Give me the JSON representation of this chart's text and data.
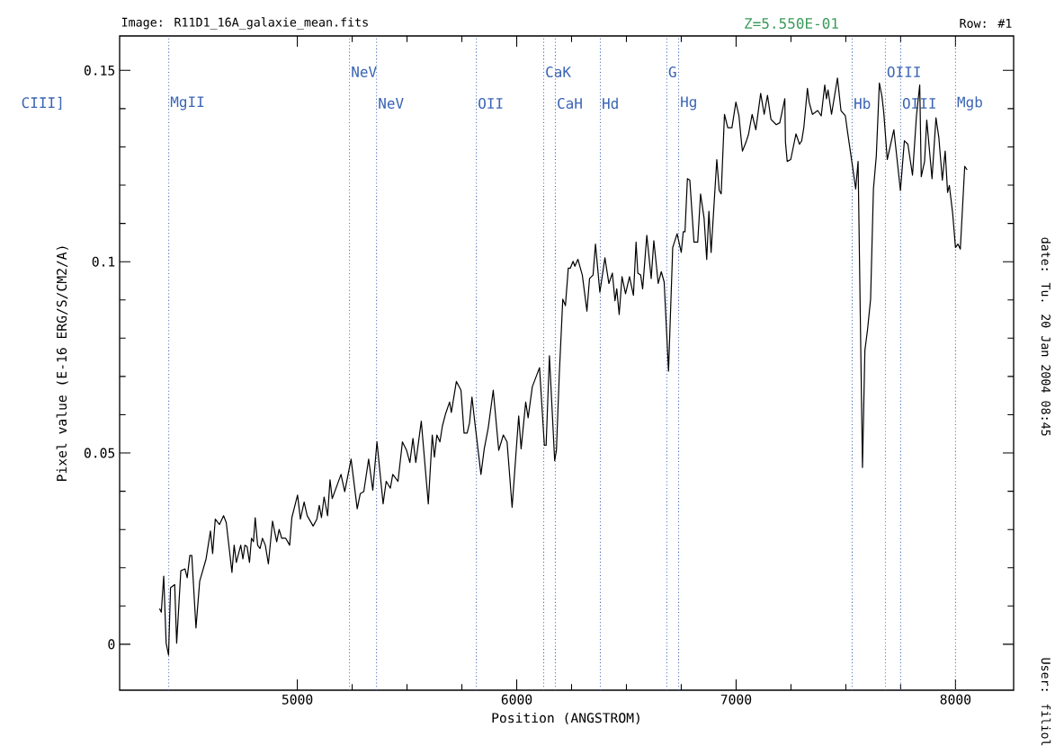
{
  "chart_data": {
    "type": "line",
    "xlabel": "Position (ANGSTROM)",
    "ylabel": "Pixel value (E-16 ERG/S/CM2/A)",
    "annotations": [
      "Image: R11D1_16A_galaxie_mean.fits",
      "Row: #1",
      "CIII]",
      "Z=5.550E-01",
      "date: Tu. 20 Jan 2004 08:45",
      "User: filiol"
    ],
    "xlim": [
      4190,
      8265
    ],
    "ylim": [
      -0.012,
      0.159
    ],
    "xticks": [
      5000,
      6000,
      7000,
      8000
    ],
    "yticks": [
      0,
      0.05,
      0.1,
      0.15
    ],
    "grid": false,
    "marker": "none",
    "line_style": "solid",
    "ref_lines": [
      {
        "axis": "x",
        "value": 4414,
        "label": "MgII",
        "color": "#3a64b4",
        "line_style": "dotted"
      },
      {
        "axis": "x",
        "value": 5238,
        "label": "NeV",
        "color": "#3a64b4",
        "line_style": "dotted"
      },
      {
        "axis": "x",
        "value": 5361,
        "label": "NeV",
        "color": "#3a64b4",
        "line_style": "dotted"
      },
      {
        "axis": "x",
        "value": 5816,
        "label": "OII",
        "color": "#3a64b4",
        "line_style": "dotted"
      },
      {
        "axis": "x",
        "value": 6123,
        "label": "CaK",
        "color": "#3a64b4",
        "line_style": "dotted"
      },
      {
        "axis": "x",
        "value": 6176,
        "label": "CaH",
        "color": "#3a64b4",
        "line_style": "dotted"
      },
      {
        "axis": "x",
        "value": 6381,
        "label": "Hd",
        "color": "#3a64b4",
        "line_style": "dotted"
      },
      {
        "axis": "x",
        "value": 6684,
        "label": "G",
        "color": "#3a64b4",
        "line_style": "dotted"
      },
      {
        "axis": "x",
        "value": 6738,
        "label": "Hg",
        "color": "#3a64b4",
        "line_style": "dotted"
      },
      {
        "axis": "x",
        "value": 7529,
        "label": "Hb",
        "color": "#3a64b4",
        "line_style": "dotted"
      },
      {
        "axis": "x",
        "value": 7680,
        "label": "OIII",
        "color": "#3a64b4",
        "line_style": "dotted"
      },
      {
        "axis": "x",
        "value": 7750,
        "label": "OIII",
        "color": "#3a64b4",
        "line_style": "dotted"
      },
      {
        "axis": "x",
        "value": 8000,
        "label": "Mgb",
        "color": "#3a64b4",
        "line_style": "dotted"
      }
    ],
    "series": [
      {
        "color": "#000000",
        "x": [
          4372,
          4380,
          4391,
          4402,
          4413,
          4422,
          4441,
          4450,
          4469,
          4488,
          4498,
          4510,
          4519,
          4538,
          4555,
          4584,
          4604,
          4614,
          4626,
          4645,
          4664,
          4676,
          4702,
          4712,
          4722,
          4742,
          4752,
          4761,
          4771,
          4782,
          4791,
          4800,
          4808,
          4819,
          4830,
          4841,
          4854,
          4868,
          4887,
          4906,
          4917,
          4929,
          4947,
          4965,
          4975,
          5001,
          5014,
          5031,
          5045,
          5072,
          5089,
          5100,
          5110,
          5122,
          5138,
          5149,
          5159,
          5182,
          5199,
          5216,
          5245,
          5273,
          5287,
          5303,
          5325,
          5344,
          5363,
          5391,
          5405,
          5424,
          5435,
          5459,
          5479,
          5498,
          5513,
          5527,
          5540,
          5565,
          5597,
          5615,
          5625,
          5636,
          5650,
          5661,
          5675,
          5694,
          5702,
          5725,
          5746,
          5760,
          5774,
          5785,
          5796,
          5811,
          5837,
          5852,
          5870,
          5893,
          5918,
          5939,
          5956,
          5979,
          6009,
          6020,
          6041,
          6052,
          6071,
          6104,
          6126,
          6134,
          6149,
          6173,
          6181,
          6194,
          6210,
          6222,
          6235,
          6244,
          6257,
          6265,
          6279,
          6299,
          6320,
          6332,
          6348,
          6359,
          6379,
          6402,
          6420,
          6436,
          6448,
          6456,
          6467,
          6480,
          6496,
          6514,
          6532,
          6544,
          6552,
          6565,
          6574,
          6593,
          6613,
          6625,
          6645,
          6659,
          6672,
          6692,
          6711,
          6731,
          6750,
          6759,
          6767,
          6778,
          6789,
          6808,
          6825,
          6838,
          6854,
          6866,
          6876,
          6886,
          6912,
          6923,
          6932,
          6947,
          6962,
          6981,
          6999,
          7013,
          7025,
          7029,
          7045,
          7057,
          7073,
          7090,
          7112,
          7128,
          7143,
          7159,
          7183,
          7199,
          7222,
          7225,
          7233,
          7249,
          7273,
          7289,
          7299,
          7309,
          7325,
          7333,
          7348,
          7372,
          7388,
          7404,
          7412,
          7419,
          7435,
          7462,
          7478,
          7498,
          7508,
          7532,
          7545,
          7556,
          7576,
          7587,
          7599,
          7613,
          7626,
          7639,
          7653,
          7665,
          7673,
          7689,
          7719,
          7749,
          7767,
          7783,
          7804,
          7822,
          7837,
          7844,
          7859,
          7869,
          7893,
          7911,
          7924,
          7940,
          7953,
          7964,
          7972,
          7987,
          8000,
          8011,
          8022,
          8042,
          8053
        ],
        "values": [
          0.0093,
          0.0084,
          0.0178,
          0.0003,
          -0.0028,
          0.0148,
          0.0156,
          0.0003,
          0.0192,
          0.0197,
          0.0174,
          0.0232,
          0.0232,
          0.0043,
          0.0165,
          0.0223,
          0.0296,
          0.0237,
          0.0327,
          0.0313,
          0.0336,
          0.0318,
          0.0188,
          0.0259,
          0.0214,
          0.0259,
          0.0223,
          0.0259,
          0.0255,
          0.0214,
          0.0277,
          0.0268,
          0.0331,
          0.0259,
          0.025,
          0.0277,
          0.0259,
          0.021,
          0.0322,
          0.0268,
          0.03,
          0.0277,
          0.0277,
          0.0259,
          0.0331,
          0.039,
          0.0327,
          0.0372,
          0.0336,
          0.0309,
          0.0327,
          0.0363,
          0.0331,
          0.0385,
          0.0336,
          0.043,
          0.0381,
          0.0417,
          0.0444,
          0.0399,
          0.0484,
          0.0354,
          0.0394,
          0.0399,
          0.0484,
          0.0403,
          0.0529,
          0.0367,
          0.0426,
          0.0408,
          0.0444,
          0.0426,
          0.0529,
          0.0507,
          0.0475,
          0.0538,
          0.0475,
          0.0583,
          0.0367,
          0.0547,
          0.0489,
          0.0547,
          0.0529,
          0.057,
          0.0601,
          0.0633,
          0.0606,
          0.0687,
          0.0664,
          0.0552,
          0.0552,
          0.0579,
          0.0646,
          0.057,
          0.0444,
          0.0511,
          0.0565,
          0.0664,
          0.0507,
          0.0547,
          0.0529,
          0.0358,
          0.0597,
          0.0511,
          0.0633,
          0.0592,
          0.0673,
          0.0723,
          0.052,
          0.052,
          0.0754,
          0.048,
          0.0507,
          0.0705,
          0.0902,
          0.0885,
          0.0983,
          0.0983,
          0.1001,
          0.0988,
          0.1006,
          0.0965,
          0.0871,
          0.0956,
          0.0965,
          0.1046,
          0.092,
          0.101,
          0.0943,
          0.097,
          0.0898,
          0.0929,
          0.0862,
          0.0961,
          0.0916,
          0.0961,
          0.0912,
          0.1051,
          0.097,
          0.0965,
          0.0929,
          0.1069,
          0.0956,
          0.1055,
          0.0943,
          0.0974,
          0.0947,
          0.0714,
          0.1037,
          0.1073,
          0.1024,
          0.1078,
          0.1078,
          0.1217,
          0.1213,
          0.1051,
          0.1051,
          0.1177,
          0.1114,
          0.1006,
          0.1132,
          0.1024,
          0.1267,
          0.1186,
          0.1177,
          0.1385,
          0.135,
          0.135,
          0.1417,
          0.1381,
          0.1309,
          0.1289,
          0.1312,
          0.1334,
          0.1385,
          0.1345,
          0.144,
          0.1385,
          0.1435,
          0.1372,
          0.1358,
          0.1363,
          0.1426,
          0.1312,
          0.1262,
          0.1267,
          0.1334,
          0.1307,
          0.1316,
          0.1352,
          0.1453,
          0.1417,
          0.1385,
          0.1395,
          0.1381,
          0.1462,
          0.1426,
          0.1449,
          0.1385,
          0.148,
          0.1395,
          0.1381,
          0.1339,
          0.1244,
          0.119,
          0.1262,
          0.0462,
          0.0768,
          0.0822,
          0.0902,
          0.119,
          0.1276,
          0.1467,
          0.1431,
          0.139,
          0.1267,
          0.1345,
          0.1186,
          0.1316,
          0.1307,
          0.1226,
          0.1381,
          0.1462,
          0.1222,
          0.1262,
          0.137,
          0.1217,
          0.1376,
          0.1325,
          0.1213,
          0.1289,
          0.1181,
          0.1199,
          0.1127,
          0.1037,
          0.1046,
          0.1033,
          0.1249,
          0.124
        ]
      }
    ]
  }
}
